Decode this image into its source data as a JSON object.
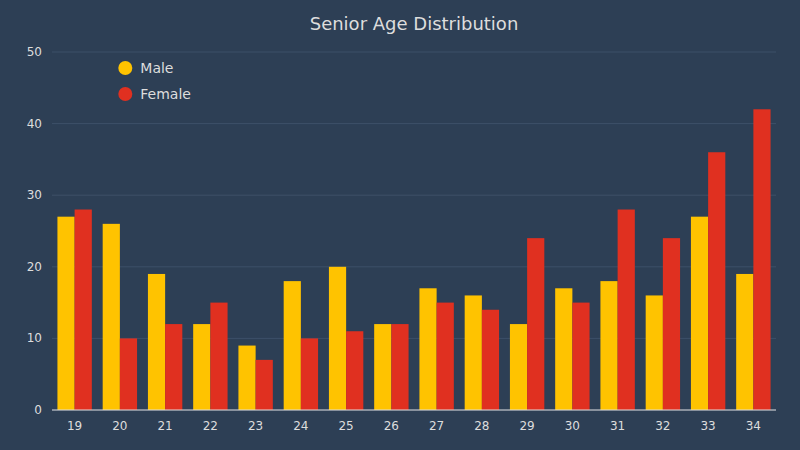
{
  "chart_data": {
    "type": "bar",
    "title": "Senior Age Distribution",
    "categories": [
      "19",
      "20",
      "21",
      "22",
      "23",
      "24",
      "25",
      "26",
      "27",
      "28",
      "29",
      "30",
      "31",
      "32",
      "33",
      "34"
    ],
    "series": [
      {
        "name": "Male",
        "color": "#FFC300",
        "values": [
          27,
          26,
          19,
          12,
          9,
          18,
          20,
          12,
          17,
          16,
          12,
          17,
          18,
          16,
          27,
          19
        ]
      },
      {
        "name": "Female",
        "color": "#E03020",
        "values": [
          28,
          10,
          12,
          15,
          7,
          10,
          11,
          12,
          15,
          14,
          24,
          15,
          28,
          24,
          36,
          42
        ]
      }
    ],
    "ylim": [
      0,
      50
    ],
    "yticks": [
      0,
      10,
      20,
      30,
      40,
      50
    ],
    "grid": true,
    "legend": "upper left"
  }
}
